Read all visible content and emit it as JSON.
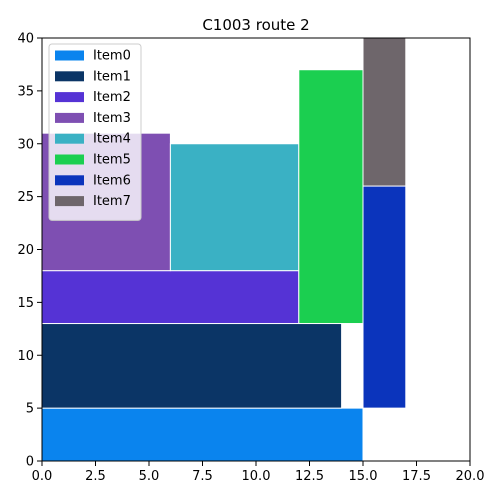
{
  "chart_data": {
    "type": "bar",
    "title": "C1003 route 2",
    "xlabel": "",
    "ylabel": "",
    "xlim": [
      0,
      20
    ],
    "ylim": [
      0,
      40
    ],
    "xticks": [
      0,
      2.5,
      5,
      7.5,
      10,
      12.5,
      15,
      17.5,
      20
    ],
    "xtick_labels": [
      "0.0",
      "2.5",
      "5.0",
      "7.5",
      "10.0",
      "12.5",
      "15.0",
      "17.5",
      "20.0"
    ],
    "yticks": [
      0,
      5,
      10,
      15,
      20,
      25,
      30,
      35,
      40
    ],
    "ytick_labels": [
      "0",
      "5",
      "10",
      "15",
      "20",
      "25",
      "30",
      "35",
      "40"
    ],
    "grid": false,
    "legend_position": "top-left",
    "items": [
      {
        "name": "Item0",
        "color": "#0a84ee",
        "x0": 0,
        "x1": 15,
        "y0": 0,
        "y1": 5
      },
      {
        "name": "Item1",
        "color": "#0b3566",
        "x0": 0,
        "x1": 14,
        "y0": 5,
        "y1": 13
      },
      {
        "name": "Item2",
        "color": "#5533d5",
        "x0": 0,
        "x1": 12,
        "y0": 13,
        "y1": 18
      },
      {
        "name": "Item3",
        "color": "#7e4fb2",
        "x0": 0,
        "x1": 6,
        "y0": 18,
        "y1": 31
      },
      {
        "name": "Item4",
        "color": "#3ab1c4",
        "x0": 6,
        "x1": 12,
        "y0": 18,
        "y1": 30
      },
      {
        "name": "Item5",
        "color": "#1bcf50",
        "x0": 12,
        "x1": 15,
        "y0": 13,
        "y1": 37
      },
      {
        "name": "Item6",
        "color": "#0b34bc",
        "x0": 15,
        "x1": 17,
        "y0": 5,
        "y1": 26
      },
      {
        "name": "Item7",
        "color": "#6e666b",
        "x0": 15,
        "x1": 17,
        "y0": 26,
        "y1": 40
      }
    ]
  }
}
